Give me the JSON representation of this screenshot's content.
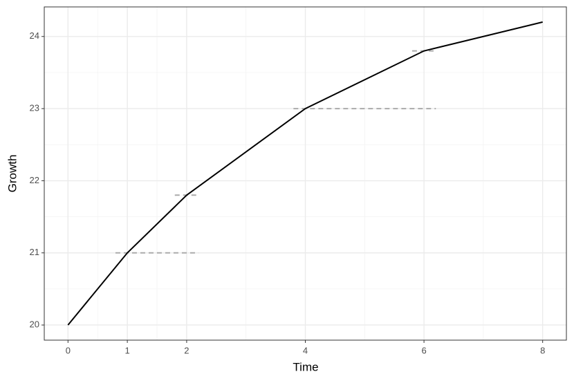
{
  "chart_data": {
    "type": "line",
    "x_label": "Time",
    "y_label": "Growth",
    "x": [
      0,
      1,
      2,
      4,
      6,
      8
    ],
    "series": [
      {
        "color": "#000000",
        "values": [
          20,
          21,
          21.8,
          23,
          23.8,
          24.2
        ]
      }
    ],
    "segments": {
      "color": "#aaaaaa",
      "y": [
        21,
        21.8,
        23,
        23.8
      ],
      "x_start": [
        0.8,
        1.8,
        3.8,
        5.8
      ],
      "x_end": [
        2.2,
        2.2,
        6.2,
        6.2
      ]
    },
    "xlim": [
      -0.4,
      8.4
    ],
    "ylim": [
      19.79,
      24.41
    ],
    "xticks": [
      0,
      1,
      2,
      4,
      6,
      8
    ],
    "yticks": [
      20,
      21,
      22,
      23,
      24
    ],
    "x_minor_ticks": [
      0.5,
      1.5,
      3,
      5,
      7
    ],
    "y_minor_ticks": [
      20.5,
      21.5,
      22.5,
      23.5
    ],
    "grid": true
  }
}
